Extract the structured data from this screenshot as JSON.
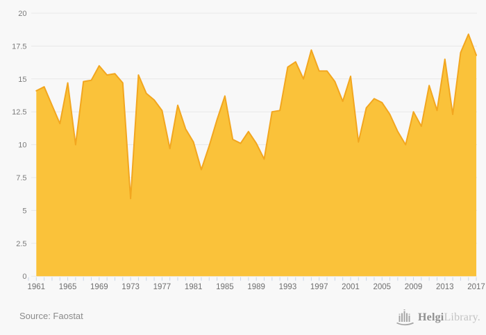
{
  "chart_data": {
    "type": "area",
    "title": "",
    "xlabel": "",
    "ylabel": "",
    "x": [
      1961,
      1962,
      1963,
      1964,
      1965,
      1966,
      1967,
      1968,
      1969,
      1970,
      1971,
      1972,
      1973,
      1974,
      1975,
      1976,
      1977,
      1978,
      1979,
      1980,
      1981,
      1982,
      1983,
      1984,
      1985,
      1986,
      1987,
      1988,
      1989,
      1990,
      1991,
      1992,
      1993,
      1994,
      1995,
      1996,
      1997,
      1998,
      1999,
      2000,
      2001,
      2002,
      2003,
      2004,
      2005,
      2006,
      2007,
      2008,
      2009,
      2010,
      2011,
      2012,
      2013,
      2014,
      2015,
      2016,
      2017
    ],
    "values": [
      14.1,
      14.4,
      13.0,
      11.6,
      14.7,
      10.0,
      14.8,
      14.9,
      16.0,
      15.3,
      15.4,
      14.7,
      5.9,
      15.3,
      13.9,
      13.4,
      12.6,
      9.7,
      13.0,
      11.2,
      10.2,
      8.1,
      9.9,
      11.9,
      13.7,
      10.4,
      10.1,
      11.0,
      10.1,
      8.9,
      12.5,
      12.6,
      15.9,
      16.3,
      15.0,
      17.2,
      15.6,
      15.6,
      14.8,
      13.3,
      15.2,
      10.2,
      12.8,
      13.5,
      13.2,
      12.3,
      11.0,
      10.0,
      12.5,
      11.4,
      14.5,
      12.6,
      16.5,
      12.3,
      17.0,
      18.4,
      16.8
    ],
    "ylim": [
      0,
      20
    ],
    "yticks": [
      0,
      2.5,
      5,
      7.5,
      10,
      12.5,
      15,
      17.5,
      20
    ],
    "ytick_labels": [
      "0",
      "2.5",
      "5",
      "7.5",
      "10",
      "12.5",
      "15",
      "17.5",
      "20"
    ],
    "xtick_labels": [
      "1961",
      "1965",
      "1969",
      "1973",
      "1977",
      "1981",
      "1985",
      "1989",
      "1993",
      "1997",
      "2001",
      "2005",
      "2009",
      "2013",
      "2017"
    ],
    "grid": true,
    "legend": "none"
  },
  "theme": {
    "background": "#f8f8f8",
    "area_fill": "#FAC23A",
    "line_color": "#F2A61F",
    "grid_color": "#e7e7e7",
    "tick_color": "#c9d5e6"
  },
  "footer": {
    "source": "Source: Faostat",
    "logo": {
      "brand_primary": "Helgi",
      "brand_secondary": "Library.",
      "icon": "helgi-pipes-icon"
    }
  }
}
